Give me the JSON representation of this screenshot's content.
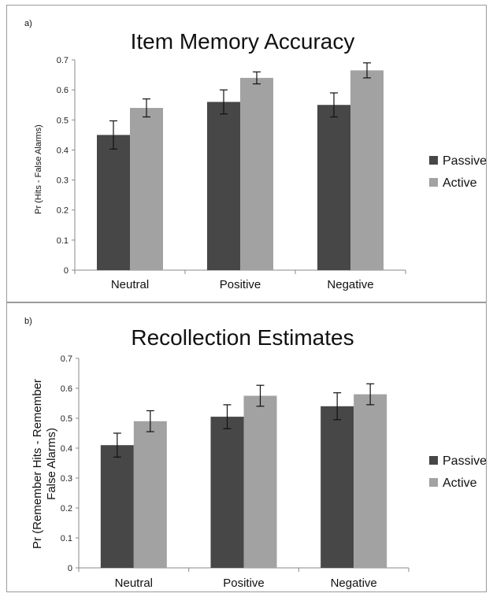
{
  "chart_data": [
    {
      "type": "bar",
      "panel_label": "a)",
      "title": "Item Memory Accuracy",
      "ylabel": "Pr (Hits - False Alarms)",
      "xlabel": "",
      "categories": [
        "Neutral",
        "Positive",
        "Negative"
      ],
      "series": [
        {
          "name": "Passive",
          "color": "#474747",
          "values": [
            0.45,
            0.56,
            0.55
          ],
          "errors": [
            0.047,
            0.04,
            0.04
          ]
        },
        {
          "name": "Active",
          "color": "#a2a2a2",
          "values": [
            0.54,
            0.64,
            0.665
          ],
          "errors": [
            0.03,
            0.02,
            0.025
          ]
        }
      ],
      "ylim": [
        0,
        0.7
      ],
      "yticks": [
        "0",
        "0.1",
        "0.2",
        "0.3",
        "0.4",
        "0.5",
        "0.6",
        "0.7"
      ],
      "grid": false,
      "legend": "right"
    },
    {
      "type": "bar",
      "panel_label": "b)",
      "title": "Recollection Estimates",
      "ylabel_lines": [
        "Pr (Remember Hits - Remember",
        "False Alarms)"
      ],
      "xlabel": "",
      "categories": [
        "Neutral",
        "Positive",
        "Negative"
      ],
      "series": [
        {
          "name": "Passive",
          "color": "#474747",
          "values": [
            0.41,
            0.505,
            0.54
          ],
          "errors": [
            0.04,
            0.04,
            0.045
          ]
        },
        {
          "name": "Active",
          "color": "#a2a2a2",
          "values": [
            0.49,
            0.575,
            0.58
          ],
          "errors": [
            0.035,
            0.035,
            0.035
          ]
        }
      ],
      "ylim": [
        0,
        0.7
      ],
      "yticks": [
        "0",
        "0.1",
        "0.2",
        "0.3",
        "0.4",
        "0.5",
        "0.6",
        "0.7"
      ],
      "grid": false,
      "legend": "right"
    }
  ]
}
